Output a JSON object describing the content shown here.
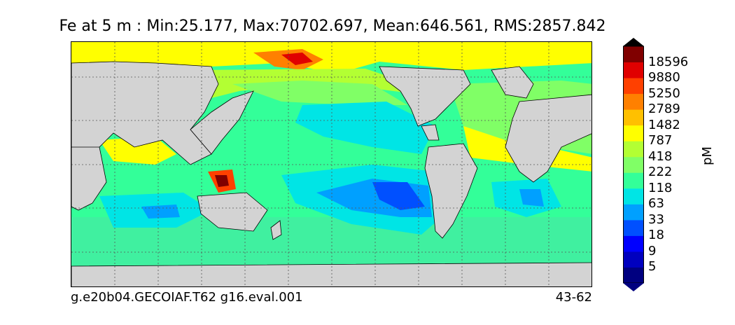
{
  "title": "Fe at 5 m : Min:25.177, Max:70702.697, Mean:646.561, RMS:2857.842",
  "footer": {
    "case_name": "g.e20b04.GECOIAF.T62 g16.eval.001",
    "years": "43-62"
  },
  "colorbar": {
    "units": "pM",
    "levels": [
      "5",
      "9",
      "18",
      "33",
      "63",
      "118",
      "222",
      "418",
      "787",
      "1482",
      "2789",
      "5250",
      "9880",
      "18596"
    ],
    "colors": [
      "#000080",
      "#0000bf",
      "#0000ff",
      "#0050ff",
      "#00a0ff",
      "#00e5e5",
      "#33ff99",
      "#80ff66",
      "#b3ff33",
      "#ffff00",
      "#ffc000",
      "#ff8000",
      "#ff4000",
      "#e00000",
      "#800000"
    ],
    "extend": "both"
  },
  "map": {
    "land_color": "#d3d3d3",
    "gridlines": "dotted",
    "projection": "global, Pacific-centered"
  }
}
